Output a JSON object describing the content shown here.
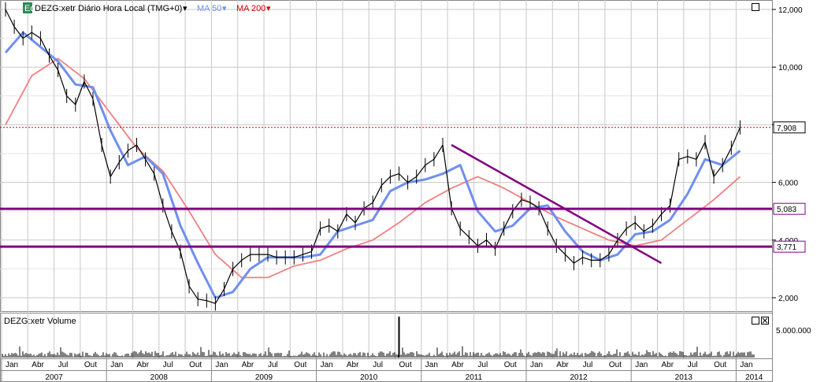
{
  "header": {
    "badge": "Eq",
    "symbol_label": "DEZG:xetr Diário Hora Local (TMG+0)",
    "ma50_label": "MA 50",
    "ma200_label": "MA 200"
  },
  "volume_panel": {
    "label": "DEZG:xetr Volume",
    "y_tick": "5.000.000"
  },
  "colors": {
    "price": "#000000",
    "ma50": "#6f8ff0",
    "ma200": "#f08080",
    "level_lines": "#800080",
    "trendline": "#800080",
    "last_price_line": "#d40000",
    "grid": "#c8c8c8"
  },
  "chart_data": {
    "type": "line",
    "title": "DEZG:xetr Diário Hora Local (TMG+0)",
    "x_axis": {
      "months": [
        "Jan",
        "Abr",
        "Jul",
        "Out",
        "Jan",
        "Abr",
        "Jul",
        "Out",
        "Jan",
        "Abr",
        "Jul",
        "Out",
        "Jan",
        "Abr",
        "Jul",
        "Out",
        "Jan",
        "Abr",
        "Jul",
        "Out",
        "Jan",
        "Abr",
        "Jul",
        "Out",
        "Jan",
        "Abr",
        "Jul",
        "Out",
        "Jan"
      ],
      "years": [
        "2007",
        "2008",
        "2009",
        "2010",
        "2011",
        "2012",
        "2013",
        "2014"
      ],
      "range": [
        "2007-01",
        "2014-02"
      ]
    },
    "y_axis": {
      "ticks": [
        "2,000",
        "4,000",
        "6,000",
        "8,000",
        "10,000",
        "12,000"
      ],
      "tick_values": [
        2000,
        4000,
        6000,
        8000,
        10000,
        12000
      ],
      "ylim": [
        1500,
        12200
      ],
      "grid": true
    },
    "series": [
      {
        "name": "DEZG:xetr",
        "x": [
          "2007-01",
          "2007-02",
          "2007-03",
          "2007-04",
          "2007-05",
          "2007-06",
          "2007-07",
          "2007-08",
          "2007-09",
          "2007-10",
          "2007-11",
          "2007-12",
          "2008-01",
          "2008-02",
          "2008-03",
          "2008-04",
          "2008-05",
          "2008-06",
          "2008-07",
          "2008-08",
          "2008-09",
          "2008-10",
          "2008-11",
          "2008-12",
          "2009-01",
          "2009-02",
          "2009-03",
          "2009-04",
          "2009-05",
          "2009-06",
          "2009-07",
          "2009-08",
          "2009-09",
          "2009-10",
          "2009-11",
          "2009-12",
          "2010-01",
          "2010-02",
          "2010-03",
          "2010-04",
          "2010-05",
          "2010-06",
          "2010-07",
          "2010-08",
          "2010-09",
          "2010-10",
          "2010-11",
          "2010-12",
          "2011-01",
          "2011-02",
          "2011-03",
          "2011-04",
          "2011-05",
          "2011-06",
          "2011-07",
          "2011-08",
          "2011-09",
          "2011-10",
          "2011-11",
          "2011-12",
          "2012-01",
          "2012-02",
          "2012-03",
          "2012-04",
          "2012-05",
          "2012-06",
          "2012-07",
          "2012-08",
          "2012-09",
          "2012-10",
          "2012-11",
          "2012-12",
          "2013-01",
          "2013-02",
          "2013-03",
          "2013-04",
          "2013-05",
          "2013-06",
          "2013-07",
          "2013-08",
          "2013-09",
          "2013-10",
          "2013-11",
          "2013-12",
          "2014-01"
        ],
        "values": [
          12000,
          11400,
          11000,
          11200,
          11000,
          10400,
          9900,
          9000,
          8700,
          9500,
          8900,
          7300,
          6200,
          6700,
          7100,
          7300,
          6800,
          6300,
          5200,
          4300,
          3600,
          2400,
          1950,
          1900,
          1800,
          2300,
          3000,
          3300,
          3500,
          3500,
          3500,
          3400,
          3400,
          3400,
          3500,
          3600,
          4400,
          4500,
          4300,
          4900,
          4600,
          5100,
          5300,
          5900,
          6200,
          6300,
          6000,
          6200,
          6600,
          6800,
          7300,
          5100,
          4400,
          4100,
          3800,
          4000,
          3700,
          4400,
          5000,
          5400,
          5300,
          5100,
          4400,
          3800,
          3500,
          3200,
          3400,
          3300,
          3300,
          3500,
          4000,
          4400,
          4600,
          4300,
          4500,
          4900,
          5200,
          6800,
          6900,
          6800,
          7400,
          6200,
          6600,
          7200,
          7908
        ]
      },
      {
        "name": "MA 50",
        "x": [
          "2007-01",
          "2007-03",
          "2007-05",
          "2007-07",
          "2007-09",
          "2007-11",
          "2008-01",
          "2008-03",
          "2008-05",
          "2008-07",
          "2008-09",
          "2008-11",
          "2009-01",
          "2009-03",
          "2009-05",
          "2009-07",
          "2009-09",
          "2009-11",
          "2010-01",
          "2010-03",
          "2010-05",
          "2010-07",
          "2010-09",
          "2010-11",
          "2011-01",
          "2011-03",
          "2011-05",
          "2011-07",
          "2011-09",
          "2011-11",
          "2012-01",
          "2012-03",
          "2012-05",
          "2012-07",
          "2012-09",
          "2012-11",
          "2013-01",
          "2013-03",
          "2013-05",
          "2013-07",
          "2013-09",
          "2013-11",
          "2014-01"
        ],
        "values": [
          10500,
          11200,
          10700,
          10200,
          9400,
          9300,
          7800,
          6600,
          6900,
          6300,
          4500,
          3200,
          2000,
          2200,
          3000,
          3400,
          3400,
          3400,
          3500,
          4300,
          4500,
          4700,
          5700,
          6000,
          6100,
          6300,
          6600,
          5000,
          4300,
          4500,
          5100,
          5200,
          4300,
          3600,
          3300,
          3500,
          4200,
          4300,
          4700,
          5600,
          6800,
          6600,
          7100
        ]
      },
      {
        "name": "MA 200",
        "x": [
          "2007-01",
          "2007-04",
          "2007-07",
          "2007-10",
          "2008-01",
          "2008-04",
          "2008-07",
          "2008-10",
          "2009-01",
          "2009-04",
          "2009-07",
          "2009-10",
          "2010-01",
          "2010-04",
          "2010-07",
          "2010-10",
          "2011-01",
          "2011-04",
          "2011-07",
          "2011-10",
          "2012-01",
          "2012-04",
          "2012-07",
          "2012-10",
          "2013-01",
          "2013-04",
          "2013-07",
          "2013-10",
          "2014-01"
        ],
        "values": [
          8000,
          9700,
          10300,
          9600,
          8400,
          7200,
          6400,
          5000,
          3500,
          2700,
          2700,
          3100,
          3300,
          3700,
          4000,
          4600,
          5300,
          5800,
          6200,
          5800,
          5300,
          4800,
          4400,
          4000,
          3800,
          4000,
          4700,
          5400,
          6200
        ]
      }
    ],
    "horizontal_levels": [
      {
        "value": 5083,
        "label": "5,083"
      },
      {
        "value": 3771,
        "label": "3,771"
      }
    ],
    "last_price": {
      "value": 7908,
      "label": "7,908"
    },
    "trendline": {
      "from": {
        "x": "2011-04",
        "y": 7300
      },
      "to": {
        "x": "2013-04",
        "y": 3200
      }
    },
    "volume": {
      "ylabel": "5.000.000",
      "spike": {
        "x": "2010-10",
        "value": 7000000
      },
      "typical": 1000000
    }
  }
}
